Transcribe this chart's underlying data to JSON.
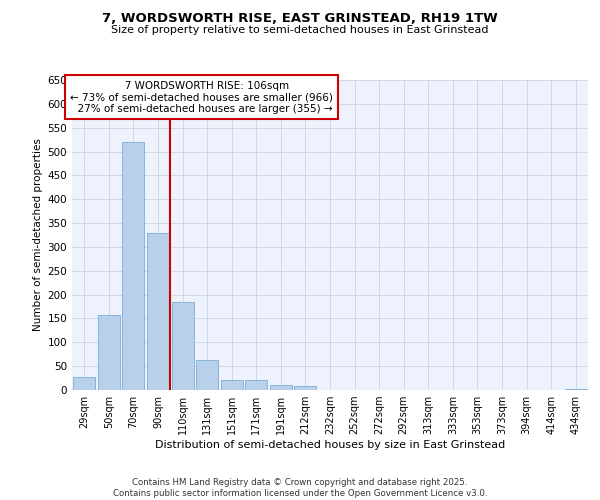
{
  "title1": "7, WORDSWORTH RISE, EAST GRINSTEAD, RH19 1TW",
  "title2": "Size of property relative to semi-detached houses in East Grinstead",
  "xlabel": "Distribution of semi-detached houses by size in East Grinstead",
  "ylabel": "Number of semi-detached properties",
  "categories": [
    "29sqm",
    "50sqm",
    "70sqm",
    "90sqm",
    "110sqm",
    "131sqm",
    "151sqm",
    "171sqm",
    "191sqm",
    "212sqm",
    "232sqm",
    "252sqm",
    "272sqm",
    "292sqm",
    "313sqm",
    "333sqm",
    "353sqm",
    "373sqm",
    "394sqm",
    "414sqm",
    "434sqm"
  ],
  "values": [
    28,
    158,
    520,
    330,
    185,
    62,
    20,
    20,
    11,
    8,
    0,
    0,
    0,
    0,
    0,
    0,
    0,
    0,
    0,
    0,
    2
  ],
  "bar_color": "#b8d0ea",
  "bar_edge_color": "#7aaed6",
  "vline_x_idx": 4,
  "marker_label": "7 WORDSWORTH RISE: 106sqm",
  "pct_smaller": "73%",
  "n_smaller": 966,
  "pct_larger": "27%",
  "n_larger": 355,
  "vline_color": "#cc0000",
  "grid_color": "#d0d8e8",
  "bg_color": "#eef2fc",
  "footer": "Contains HM Land Registry data © Crown copyright and database right 2025.\nContains public sector information licensed under the Open Government Licence v3.0.",
  "ylim": [
    0,
    650
  ],
  "yticks": [
    0,
    50,
    100,
    150,
    200,
    250,
    300,
    350,
    400,
    450,
    500,
    550,
    600,
    650
  ]
}
